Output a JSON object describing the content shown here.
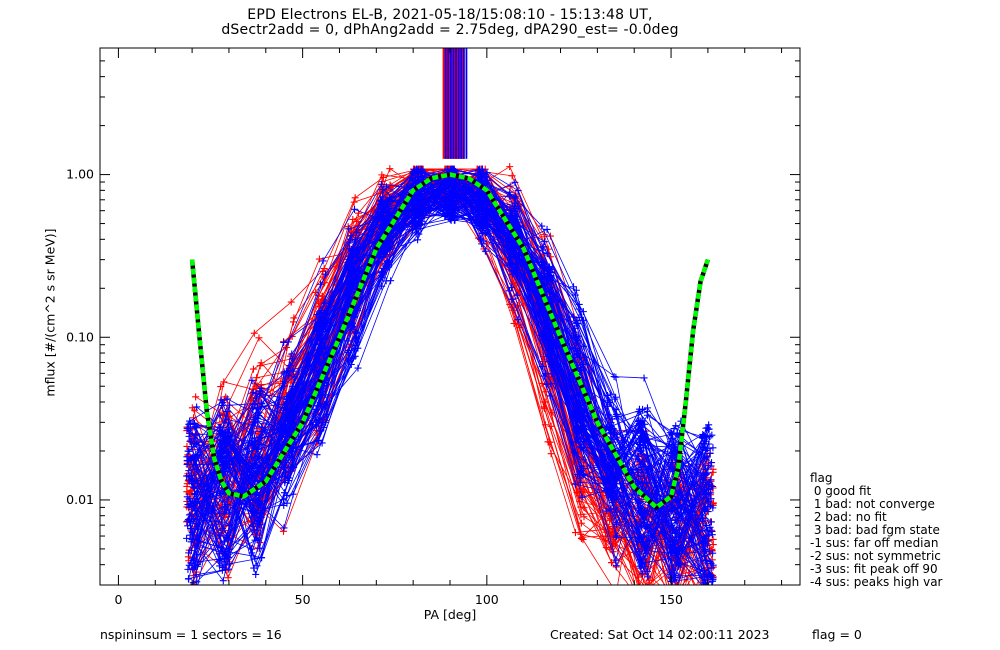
{
  "title": {
    "line1": "EPD Electrons EL-B, 2021-05-18/15:08:10 - 15:13:48 UT,",
    "line2": "dSectr2add = 0, dPhAng2add = 2.75deg, dPA290_est=  -0.0deg"
  },
  "footer": {
    "left": "nspininsum =  1  sectors = 16",
    "created": "Created: Sat Oct 14 02:00:11 2023",
    "flag": "flag = 0"
  },
  "legend": {
    "title": "flag",
    "items": [
      " 0 good fit",
      " 1 bad: not converge",
      " 2 bad: no fit",
      " 3 bad: bad fgm state",
      "-1 sus: far off median",
      "-2 sus: not symmetric",
      "-3 sus: fit peak off 90",
      "-4 sus: peaks high var"
    ]
  },
  "colors": {
    "series_a": "#ff0000",
    "series_b": "#0000ff",
    "fit_green": "#00ff00",
    "fit_black": "#000000"
  },
  "chart_data": {
    "type": "line",
    "xlabel": "PA [deg]",
    "ylabel": "mflux [#/(cm^2 s sr MeV)]",
    "xlim": [
      -5,
      185
    ],
    "ylim": [
      0.003,
      6
    ],
    "yscale": "log",
    "xticks": [
      "0",
      "50",
      "100",
      "150"
    ],
    "xtick_values": [
      0,
      50,
      100,
      150
    ],
    "yticks": [
      "0.01",
      "0.10",
      "1.00"
    ],
    "ytick_values": [
      0.01,
      0.1,
      1.0
    ],
    "grid": false,
    "legend_position": "right",
    "series": [
      {
        "color": "red",
        "marker": "+",
        "envelope_pa": [
          20,
          30,
          40,
          50,
          60,
          70,
          80,
          85,
          90,
          95,
          100,
          110,
          120,
          130,
          140,
          150,
          160
        ],
        "envelope_typical": [
          0.008,
          0.012,
          0.018,
          0.04,
          0.15,
          0.45,
          0.8,
          0.95,
          1.0,
          0.95,
          0.75,
          0.3,
          0.05,
          0.009,
          0.006,
          0.007,
          0.005
        ]
      },
      {
        "color": "blue",
        "marker": "+",
        "envelope_pa": [
          20,
          30,
          40,
          50,
          60,
          70,
          80,
          85,
          90,
          95,
          100,
          110,
          120,
          130,
          140,
          150,
          160
        ],
        "envelope_typical": [
          0.009,
          0.011,
          0.016,
          0.04,
          0.14,
          0.42,
          0.72,
          0.75,
          0.78,
          0.78,
          0.65,
          0.35,
          0.1,
          0.02,
          0.012,
          0.01,
          0.008
        ]
      }
    ],
    "fit_curve": {
      "style": "dashed green/black",
      "x": [
        20,
        22,
        24,
        26,
        28,
        30,
        34,
        40,
        50,
        60,
        70,
        80,
        85,
        90,
        95,
        100,
        110,
        120,
        130,
        140,
        146,
        150,
        152,
        154,
        156,
        158,
        160
      ],
      "y": [
        0.3,
        0.1,
        0.035,
        0.018,
        0.013,
        0.011,
        0.0105,
        0.013,
        0.03,
        0.1,
        0.35,
        0.8,
        0.95,
        1.0,
        0.95,
        0.8,
        0.35,
        0.1,
        0.03,
        0.012,
        0.009,
        0.0105,
        0.016,
        0.04,
        0.11,
        0.22,
        0.3
      ]
    },
    "band": {
      "x_range": [
        88,
        94
      ],
      "y_range": [
        1.25,
        6
      ]
    }
  }
}
